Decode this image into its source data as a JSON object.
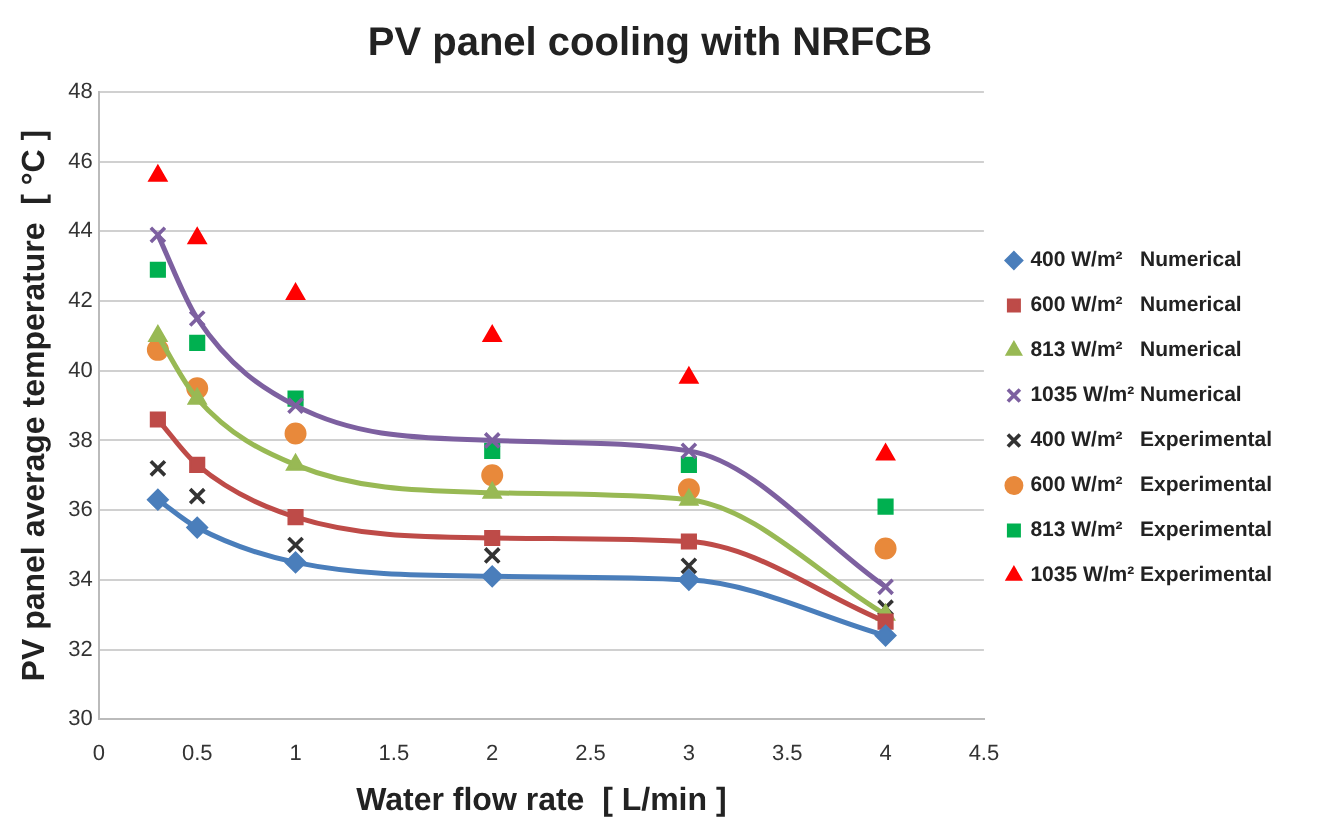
{
  "chart_data": {
    "type": "line",
    "title": "PV panel cooling with NRFCB",
    "xlabel": "Water flow rate  [ L/min ]",
    "ylabel": "PV panel average temperature  [ °C ]",
    "x": [
      0.3,
      0.5,
      1,
      2,
      3,
      4
    ],
    "series": [
      {
        "name": "400 W/m²   Numerical",
        "marker": "diamond",
        "color": "#4a7ebb",
        "values": [
          36.3,
          35.5,
          34.5,
          34.1,
          34.0,
          32.4
        ]
      },
      {
        "name": "600 W/m²   Numerical",
        "marker": "square",
        "color": "#be4b48",
        "values": [
          38.6,
          37.3,
          35.8,
          35.2,
          35.1,
          32.8
        ]
      },
      {
        "name": "813 W/m²   Numerical",
        "marker": "triangle",
        "color": "#98b954",
        "values": [
          41.0,
          39.2,
          37.3,
          36.5,
          36.3,
          33.0
        ]
      },
      {
        "name": "1035 W/m² Numerical",
        "marker": "cross",
        "color": "#7d60a0",
        "values": [
          43.9,
          41.5,
          39.0,
          38.0,
          37.7,
          33.8
        ]
      },
      {
        "name": "400 W/m²   Experimental",
        "type": "scatter",
        "marker": "cross",
        "color": "#333333",
        "values": [
          37.2,
          36.4,
          35.0,
          34.7,
          34.4,
          33.2
        ]
      },
      {
        "name": "600 W/m²   Experimental",
        "type": "scatter",
        "marker": "circle",
        "color": "#e8893b",
        "values": [
          40.6,
          39.5,
          38.2,
          37.0,
          36.6,
          34.9
        ]
      },
      {
        "name": "813 W/m²   Experimental",
        "type": "scatter",
        "marker": "square",
        "color": "#00b050",
        "values": [
          42.9,
          40.8,
          39.2,
          37.7,
          37.3,
          36.1
        ]
      },
      {
        "name": "1035 W/m² Experimental",
        "type": "scatter",
        "marker": "triangle",
        "color": "#ff0000",
        "values": [
          45.6,
          43.8,
          42.2,
          41.0,
          39.8,
          37.6
        ]
      }
    ],
    "xlim": [
      0,
      4.5
    ],
    "xticks": [
      0,
      0.5,
      1,
      1.5,
      2,
      2.5,
      3,
      3.5,
      4,
      4.5
    ],
    "ylim": [
      30,
      48
    ],
    "yticks": [
      30,
      32,
      34,
      36,
      38,
      40,
      42,
      44,
      46,
      48
    ],
    "grid": "y",
    "legend": "right"
  }
}
